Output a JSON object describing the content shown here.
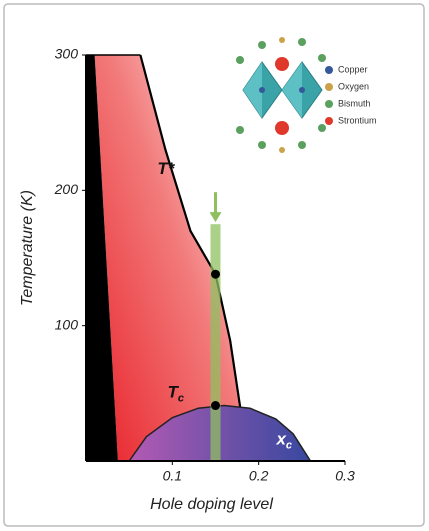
{
  "chart_data": {
    "type": "phase",
    "x_label": "Hole doping level",
    "y_label": "Temperature (K)",
    "xlim": [
      0,
      0.3
    ],
    "ylim": [
      0,
      300
    ],
    "xticks": [
      0.1,
      0.2,
      0.3
    ],
    "yticks": [
      100,
      200,
      300
    ],
    "antiferromagnet": {
      "x": [
        0.01,
        0.037
      ],
      "values": [
        300,
        0
      ],
      "color": "#000000"
    },
    "pseudogap": {
      "name": "T*",
      "x": [
        0.063,
        0.092,
        0.121,
        0.15,
        0.167,
        0.179
      ],
      "values": [
        300,
        230,
        170,
        138,
        89,
        38
      ],
      "color": "#e62a2a"
    },
    "dome": {
      "x": [
        0.05,
        0.07,
        0.1,
        0.13,
        0.16,
        0.19,
        0.22,
        0.24,
        0.26
      ],
      "values": [
        0,
        18,
        32,
        39,
        41,
        39,
        31,
        20,
        0
      ]
    },
    "cut": {
      "x": 0.15,
      "values": [
        0,
        175
      ],
      "color": "#8fc060"
    },
    "points": {
      "x": [
        0.15,
        0.15
      ],
      "values": [
        138,
        41
      ]
    },
    "tc_label": {
      "text": "T",
      "sub": "c"
    },
    "xc_label": {
      "text": "x",
      "sub": "c"
    },
    "legend": [
      {
        "name": "Copper",
        "color": "#34589a"
      },
      {
        "name": "Oxygen",
        "color": "#c9a24a"
      },
      {
        "name": "Bismuth",
        "color": "#5aa05e"
      },
      {
        "name": "Strontium",
        "color": "#e0382a"
      }
    ]
  }
}
